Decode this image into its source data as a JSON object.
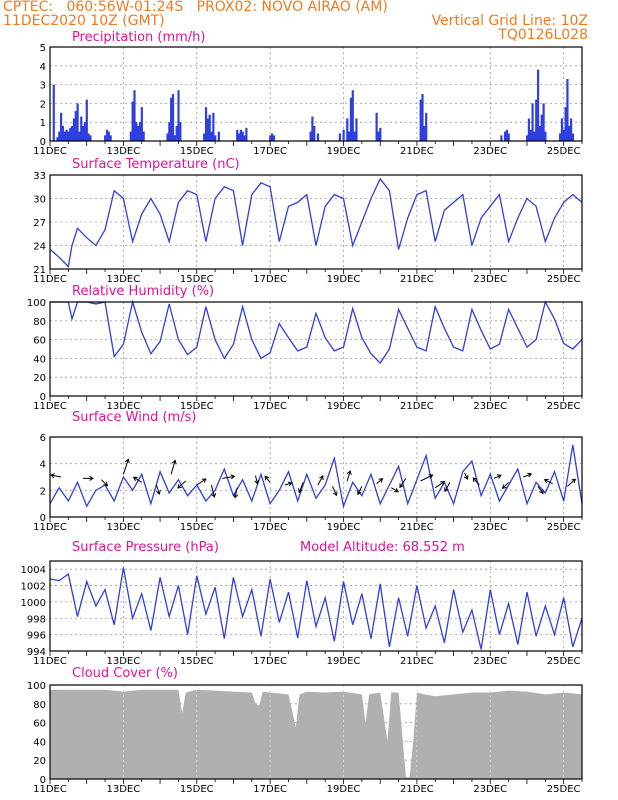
{
  "header": {
    "line1_left": "CPTEC:   060:56W-01:24S   PROX02: NOVO AIRAO (AM)",
    "line2_left": "11DEC2020 10Z (GMT)",
    "line2_right": "Vertical Grid Line: 10Z",
    "line3_right": "TQ0126L028"
  },
  "colors": {
    "header": "#f07a1e",
    "title": "#e0129a",
    "series": "#2f3fe0",
    "cloud": "#b0b0b0"
  },
  "x_labels": [
    "11DEC",
    "13DEC",
    "15DEC",
    "17DEC",
    "19DEC",
    "21DEC",
    "23DEC",
    "25DEC"
  ],
  "chart_data": [
    {
      "type": "bar",
      "title": "Precipitation (mm/h)",
      "ylim": [
        0,
        5
      ],
      "yticks": [
        0,
        1,
        2,
        3,
        4,
        5
      ],
      "x_unit": "days since 11DEC2020 10Z",
      "x": [
        0.1,
        0.2,
        0.25,
        0.3,
        0.35,
        0.4,
        0.45,
        0.5,
        0.55,
        0.6,
        0.65,
        0.7,
        0.75,
        0.8,
        0.85,
        0.9,
        0.95,
        1.0,
        1.05,
        1.1,
        1.5,
        1.55,
        1.6,
        1.65,
        2.2,
        2.25,
        2.3,
        2.35,
        2.4,
        2.45,
        2.5,
        2.55,
        3.2,
        3.25,
        3.3,
        3.35,
        3.4,
        3.45,
        3.5,
        3.55,
        4.2,
        4.25,
        4.3,
        4.35,
        4.4,
        4.45,
        4.5,
        4.6,
        5.1,
        5.15,
        5.2,
        5.25,
        5.3,
        5.35,
        6.0,
        6.05,
        6.1,
        7.1,
        7.15,
        7.2,
        7.3,
        7.9,
        8.0,
        8.1,
        8.15,
        8.2,
        8.25,
        8.3,
        8.35,
        8.9,
        8.95,
        9.0,
        10.1,
        10.15,
        10.2,
        10.25,
        12.3,
        12.4,
        12.45,
        12.5,
        13.0,
        13.05,
        13.1,
        13.15,
        13.2,
        13.25,
        13.3,
        13.35,
        13.4,
        13.45,
        13.5,
        13.9,
        13.95,
        14.0,
        14.05,
        14.1,
        14.15,
        14.2,
        14.25
      ],
      "values": [
        3.0,
        0.2,
        0.5,
        1.5,
        0.8,
        0.5,
        0.6,
        0.5,
        0.7,
        0.8,
        1.2,
        1.6,
        2.0,
        0.5,
        1.3,
        0.8,
        1.0,
        2.2,
        0.4,
        0.3,
        0.3,
        0.6,
        0.5,
        0.3,
        0.5,
        2.1,
        2.7,
        1.0,
        0.8,
        1.0,
        1.8,
        0.5,
        0.4,
        1.0,
        2.3,
        2.5,
        0.3,
        0.8,
        2.7,
        1.0,
        0.4,
        1.8,
        1.2,
        1.4,
        0.5,
        1.5,
        0.3,
        0.5,
        0.6,
        0.4,
        0.6,
        0.5,
        0.3,
        0.7,
        0.3,
        0.4,
        0.3,
        0.5,
        1.3,
        0.8,
        0.4,
        0.4,
        0.6,
        1.2,
        0.5,
        2.3,
        2.7,
        0.5,
        1.2,
        1.5,
        0.5,
        0.7,
        2.2,
        2.5,
        0.8,
        1.5,
        0.3,
        0.5,
        0.6,
        0.4,
        0.3,
        1.2,
        0.6,
        2.0,
        0.5,
        2.2,
        3.8,
        0.8,
        1.4,
        2.0,
        0.5,
        0.4,
        1.2,
        0.6,
        1.8,
        3.3,
        0.8,
        1.2,
        0.4
      ]
    },
    {
      "type": "line",
      "title": "Surface Temperature (nC)",
      "ylim": [
        21,
        33
      ],
      "yticks": [
        21,
        24,
        27,
        30,
        33
      ],
      "x_unit": "days since 11DEC2020 10Z",
      "x": [
        0,
        0.25,
        0.5,
        0.6,
        0.75,
        1,
        1.25,
        1.5,
        1.75,
        2,
        2.25,
        2.5,
        2.75,
        3,
        3.25,
        3.5,
        3.75,
        4,
        4.25,
        4.5,
        4.75,
        5,
        5.25,
        5.5,
        5.75,
        6,
        6.25,
        6.5,
        6.75,
        7,
        7.25,
        7.5,
        7.75,
        8,
        8.25,
        8.5,
        8.75,
        9,
        9.25,
        9.5,
        9.75,
        10,
        10.25,
        10.5,
        10.75,
        11,
        11.25,
        11.5,
        11.75,
        12,
        12.25,
        12.5,
        12.75,
        13,
        13.25,
        13.5,
        13.75,
        14,
        14.25,
        14.5
      ],
      "values": [
        23.5,
        22.5,
        21.3,
        24,
        26.2,
        25,
        24,
        26,
        31,
        30,
        24.5,
        28,
        30,
        28,
        24.5,
        29.5,
        31,
        30.5,
        24.5,
        30,
        31.5,
        31,
        24,
        30.5,
        32,
        31.5,
        24.5,
        29,
        29.5,
        30.5,
        24,
        29,
        30.5,
        30,
        24,
        27,
        30,
        32.5,
        31,
        23.5,
        27.5,
        30.5,
        31,
        24.5,
        28.5,
        29.5,
        30.5,
        24,
        27.5,
        29,
        30.5,
        24.5,
        27.5,
        30,
        29,
        24.5,
        27.5,
        29.5,
        30.5,
        29.5
      ]
    },
    {
      "type": "line",
      "title": "Relative Humidity (%)",
      "ylim": [
        0,
        100
      ],
      "yticks": [
        0,
        20,
        40,
        60,
        80,
        100
      ],
      "x_unit": "days since 11DEC2020 10Z",
      "x": [
        0,
        0.25,
        0.5,
        0.6,
        0.75,
        1,
        1.25,
        1.5,
        1.75,
        2,
        2.25,
        2.5,
        2.75,
        3,
        3.25,
        3.5,
        3.75,
        4,
        4.25,
        4.5,
        4.75,
        5,
        5.25,
        5.5,
        5.75,
        6,
        6.25,
        6.5,
        6.75,
        7,
        7.25,
        7.5,
        7.75,
        8,
        8.25,
        8.5,
        8.75,
        9,
        9.25,
        9.5,
        9.75,
        10,
        10.25,
        10.5,
        10.75,
        11,
        11.25,
        11.5,
        11.75,
        12,
        12.25,
        12.5,
        12.75,
        13,
        13.25,
        13.5,
        13.75,
        14,
        14.25,
        14.5
      ],
      "values": [
        100,
        100,
        100,
        82,
        100,
        100,
        98,
        100,
        42,
        55,
        100,
        68,
        45,
        58,
        98,
        60,
        44,
        52,
        95,
        60,
        40,
        55,
        95,
        60,
        40,
        46,
        77,
        62,
        48,
        52,
        88,
        62,
        48,
        52,
        93,
        62,
        45,
        35,
        50,
        92,
        72,
        52,
        48,
        95,
        72,
        52,
        48,
        92,
        70,
        50,
        55,
        92,
        72,
        52,
        60,
        100,
        82,
        56,
        50,
        60
      ]
    },
    {
      "type": "line",
      "title": "Surface Wind (m/s)",
      "ylim": [
        0,
        6
      ],
      "yticks": [
        0,
        2,
        4,
        6
      ],
      "x_unit": "days since 11DEC2020 10Z",
      "x": [
        0,
        0.25,
        0.5,
        0.75,
        1,
        1.25,
        1.5,
        1.75,
        2,
        2.25,
        2.5,
        2.75,
        3,
        3.25,
        3.5,
        3.75,
        4,
        4.25,
        4.5,
        4.75,
        5,
        5.25,
        5.5,
        5.75,
        6,
        6.25,
        6.5,
        6.75,
        7,
        7.25,
        7.5,
        7.75,
        8,
        8.25,
        8.5,
        8.75,
        9,
        9.25,
        9.5,
        9.75,
        10,
        10.25,
        10.5,
        10.75,
        11,
        11.25,
        11.5,
        11.75,
        12,
        12.25,
        12.5,
        12.75,
        13,
        13.25,
        13.5,
        13.75,
        14,
        14.25,
        14.5
      ],
      "values": [
        1.0,
        2.2,
        1.2,
        2.6,
        0.8,
        2.0,
        2.4,
        1.2,
        3.0,
        2.0,
        3.2,
        1.0,
        3.4,
        1.8,
        2.8,
        1.6,
        2.4,
        1.2,
        2.0,
        3.6,
        1.6,
        2.8,
        1.2,
        3.2,
        1.0,
        2.0,
        3.4,
        1.2,
        3.2,
        1.4,
        2.4,
        4.4,
        0.8,
        2.6,
        1.6,
        3.2,
        1.0,
        2.4,
        3.8,
        1.0,
        2.8,
        4.6,
        1.4,
        2.6,
        1.0,
        3.4,
        4.2,
        1.6,
        3.2,
        1.2,
        2.4,
        3.6,
        1.0,
        2.6,
        1.8,
        3.4,
        1.2,
        5.4,
        1.0
      ],
      "vectors": [
        {
          "x": 0.3,
          "y": 3.0,
          "u": -1,
          "v": 0.2
        },
        {
          "x": 0.9,
          "y": 2.9,
          "u": 1,
          "v": 0
        },
        {
          "x": 1.4,
          "y": 2.8,
          "u": 0.6,
          "v": -0.6
        },
        {
          "x": 2.0,
          "y": 3.2,
          "u": 0.5,
          "v": 1.5
        },
        {
          "x": 2.5,
          "y": 2.6,
          "u": -0.8,
          "v": 0.5
        },
        {
          "x": 2.9,
          "y": 2.4,
          "u": 0.3,
          "v": -0.9
        },
        {
          "x": 3.3,
          "y": 3.2,
          "u": 0.4,
          "v": 1.4
        },
        {
          "x": 3.7,
          "y": 2.7,
          "u": -0.8,
          "v": -0.7
        },
        {
          "x": 4.0,
          "y": 2.4,
          "u": 0.9,
          "v": 0.6
        },
        {
          "x": 4.4,
          "y": 2.4,
          "u": 0.3,
          "v": -1.2
        },
        {
          "x": 4.7,
          "y": 2.9,
          "u": 1.2,
          "v": 0.2
        },
        {
          "x": 5.1,
          "y": 2.2,
          "u": -0.2,
          "v": -1.0
        },
        {
          "x": 5.6,
          "y": 3.1,
          "u": 0.2,
          "v": -0.8
        },
        {
          "x": 6.0,
          "y": 2.6,
          "u": -0.5,
          "v": 0.6
        },
        {
          "x": 6.4,
          "y": 2.4,
          "u": 0.7,
          "v": 0.2
        },
        {
          "x": 6.9,
          "y": 2.6,
          "u": -0.4,
          "v": -1.0
        },
        {
          "x": 7.3,
          "y": 2.4,
          "u": 0.5,
          "v": 0.9
        },
        {
          "x": 7.7,
          "y": 2.3,
          "u": 0.4,
          "v": -0.9
        },
        {
          "x": 8.1,
          "y": 2.7,
          "u": 0.3,
          "v": 1.0
        },
        {
          "x": 8.5,
          "y": 2.3,
          "u": -0.4,
          "v": -0.8
        },
        {
          "x": 8.9,
          "y": 2.5,
          "u": 0.6,
          "v": 0.5
        },
        {
          "x": 9.3,
          "y": 2.2,
          "u": 0.7,
          "v": -0.4
        },
        {
          "x": 9.7,
          "y": 2.9,
          "u": -0.6,
          "v": -0.9
        },
        {
          "x": 10.1,
          "y": 2.7,
          "u": 1.2,
          "v": 0.6
        },
        {
          "x": 10.5,
          "y": 2.2,
          "u": 0.9,
          "v": 0.6
        },
        {
          "x": 10.9,
          "y": 2.6,
          "u": -0.5,
          "v": -0.9
        },
        {
          "x": 11.3,
          "y": 3.3,
          "u": 0.3,
          "v": -0.6
        },
        {
          "x": 11.7,
          "y": 2.4,
          "u": -0.6,
          "v": 0.7
        },
        {
          "x": 12.1,
          "y": 2.9,
          "u": 0.7,
          "v": 0.3
        },
        {
          "x": 12.5,
          "y": 2.6,
          "u": -0.6,
          "v": -0.6
        },
        {
          "x": 12.9,
          "y": 3.0,
          "u": 0.8,
          "v": 0.3
        },
        {
          "x": 13.3,
          "y": 2.3,
          "u": 0.5,
          "v": -0.7
        },
        {
          "x": 13.7,
          "y": 2.5,
          "u": -0.8,
          "v": 0.4
        },
        {
          "x": 14.1,
          "y": 2.3,
          "u": 0.8,
          "v": 0.7
        }
      ]
    },
    {
      "type": "line",
      "title": "Surface Pressure (hPa)",
      "annotation": "Model Altitude: 68.552  m",
      "ylim": [
        994,
        1005
      ],
      "yticks": [
        994,
        996,
        998,
        1000,
        1002,
        1004
      ],
      "x_unit": "days since 11DEC2020 10Z",
      "x": [
        0,
        0.25,
        0.5,
        0.75,
        1,
        1.25,
        1.5,
        1.75,
        2,
        2.25,
        2.5,
        2.75,
        3,
        3.25,
        3.5,
        3.75,
        4,
        4.25,
        4.5,
        4.75,
        5,
        5.25,
        5.5,
        5.75,
        6,
        6.25,
        6.5,
        6.75,
        7,
        7.25,
        7.5,
        7.75,
        8,
        8.25,
        8.5,
        8.75,
        9,
        9.25,
        9.5,
        9.75,
        10,
        10.25,
        10.5,
        10.75,
        11,
        11.25,
        11.5,
        11.75,
        12,
        12.25,
        12.5,
        12.75,
        13,
        13.25,
        13.5,
        13.75,
        14,
        14.25,
        14.5
      ],
      "values": [
        1002.8,
        1002.6,
        1003.4,
        998.2,
        1002.5,
        999.5,
        1001.5,
        997.2,
        1004.2,
        998,
        1001,
        996.5,
        1003,
        998.2,
        1002,
        996,
        1003.2,
        998.5,
        1001.8,
        995.5,
        1003,
        998.2,
        1001.5,
        995.8,
        1002.8,
        997.5,
        1001.2,
        995.6,
        1002.6,
        997,
        1000.5,
        995.2,
        1002.5,
        997.2,
        1001,
        995.5,
        1002.2,
        994.5,
        1000.5,
        995.8,
        1002,
        996.8,
        999.5,
        995,
        1001.5,
        996.3,
        999,
        994.2,
        1001.5,
        996,
        999.8,
        994.8,
        1001.2,
        995.8,
        999.5,
        996,
        1000.5,
        994.5,
        998
      ]
    },
    {
      "type": "area",
      "title": "Cloud Cover (%)",
      "ylim": [
        0,
        100
      ],
      "yticks": [
        0,
        20,
        40,
        60,
        80,
        100
      ],
      "x_unit": "days since 11DEC2020 10Z",
      "x": [
        0,
        0.5,
        1,
        1.5,
        2,
        2.5,
        3,
        3.5,
        3.6,
        3.7,
        4,
        4.5,
        5,
        5.5,
        5.6,
        5.7,
        5.8,
        6,
        6.5,
        6.7,
        6.8,
        7,
        7.5,
        8,
        8.5,
        8.6,
        8.7,
        9,
        9.2,
        9.3,
        9.5,
        9.7,
        9.8,
        9.9,
        10,
        10.2,
        10.5,
        11,
        11.5,
        12,
        12.5,
        13,
        13.5,
        14,
        14.5
      ],
      "values": [
        95,
        95,
        95,
        95,
        93,
        95,
        95,
        95,
        70,
        92,
        95,
        94,
        93,
        92,
        80,
        78,
        93,
        92,
        90,
        55,
        90,
        93,
        92,
        93,
        90,
        60,
        90,
        92,
        40,
        92,
        92,
        2,
        2,
        40,
        92,
        90,
        88,
        90,
        92,
        92,
        94,
        93,
        90,
        92,
        90
      ]
    }
  ]
}
